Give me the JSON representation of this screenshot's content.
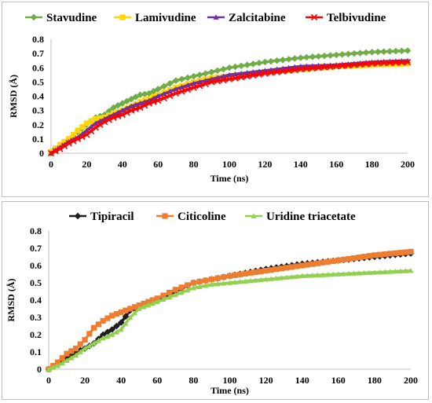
{
  "chart_data": [
    {
      "type": "line",
      "xlabel": "Time (ns)",
      "ylabel": "RMSD (Å)",
      "xlim": [
        0,
        200
      ],
      "ylim": [
        0,
        0.8
      ],
      "xticks": [
        0,
        20,
        40,
        60,
        80,
        100,
        120,
        140,
        160,
        180,
        200
      ],
      "yticks": [
        0,
        0.1,
        0.2,
        0.3,
        0.4,
        0.5,
        0.6,
        0.7,
        0.8
      ],
      "grid": false,
      "legend": "top",
      "series": [
        {
          "name": "Stavudine",
          "color": "#70ad47",
          "marker": "diamond",
          "x": [
            0,
            5,
            10,
            15,
            20,
            25,
            30,
            35,
            40,
            45,
            50,
            55,
            60,
            70,
            80,
            90,
            100,
            120,
            140,
            160,
            180,
            200
          ],
          "values": [
            0.0,
            0.05,
            0.1,
            0.15,
            0.2,
            0.25,
            0.27,
            0.32,
            0.35,
            0.38,
            0.41,
            0.42,
            0.45,
            0.51,
            0.54,
            0.57,
            0.6,
            0.64,
            0.67,
            0.69,
            0.71,
            0.72
          ]
        },
        {
          "name": "Lamivudine",
          "color": "#ffd700",
          "marker": "square",
          "x": [
            0,
            5,
            10,
            15,
            20,
            25,
            30,
            35,
            40,
            45,
            50,
            55,
            60,
            70,
            80,
            90,
            100,
            120,
            140,
            160,
            180,
            200
          ],
          "values": [
            0.01,
            0.06,
            0.1,
            0.16,
            0.21,
            0.24,
            0.25,
            0.28,
            0.3,
            0.33,
            0.36,
            0.38,
            0.41,
            0.46,
            0.5,
            0.53,
            0.54,
            0.57,
            0.59,
            0.61,
            0.62,
            0.63
          ]
        },
        {
          "name": "Zalcitabine",
          "color": "#7030a0",
          "marker": "triangle",
          "x": [
            0,
            5,
            10,
            15,
            20,
            25,
            30,
            35,
            40,
            45,
            50,
            55,
            60,
            70,
            80,
            90,
            100,
            120,
            140,
            160,
            180,
            200
          ],
          "values": [
            0.0,
            0.04,
            0.08,
            0.11,
            0.16,
            0.21,
            0.24,
            0.27,
            0.3,
            0.33,
            0.35,
            0.37,
            0.4,
            0.45,
            0.49,
            0.52,
            0.55,
            0.58,
            0.61,
            0.62,
            0.64,
            0.65
          ]
        },
        {
          "name": "Telbivudine",
          "color": "#ff0000",
          "marker": "x",
          "x": [
            0,
            5,
            10,
            15,
            20,
            25,
            30,
            35,
            40,
            45,
            50,
            55,
            60,
            70,
            80,
            90,
            100,
            120,
            140,
            160,
            180,
            200
          ],
          "values": [
            0.0,
            0.03,
            0.07,
            0.1,
            0.13,
            0.18,
            0.22,
            0.25,
            0.27,
            0.3,
            0.32,
            0.35,
            0.37,
            0.42,
            0.46,
            0.5,
            0.52,
            0.56,
            0.59,
            0.61,
            0.63,
            0.64
          ]
        }
      ]
    },
    {
      "type": "line",
      "xlabel": "Time (ns)",
      "ylabel": "RMSD (Å)",
      "xlim": [
        0,
        200
      ],
      "ylim": [
        0,
        0.8
      ],
      "xticks": [
        0,
        20,
        40,
        60,
        80,
        100,
        120,
        140,
        160,
        180,
        200
      ],
      "yticks": [
        0,
        0.1,
        0.2,
        0.3,
        0.4,
        0.5,
        0.6,
        0.7,
        0.8
      ],
      "grid": false,
      "legend": "top",
      "series": [
        {
          "name": "Tipiracil",
          "color": "#1f1f1f",
          "marker": "diamond",
          "x": [
            0,
            5,
            10,
            15,
            20,
            25,
            30,
            35,
            40,
            45,
            50,
            55,
            60,
            70,
            80,
            90,
            100,
            120,
            140,
            160,
            180,
            200
          ],
          "values": [
            0.0,
            0.03,
            0.06,
            0.1,
            0.12,
            0.15,
            0.2,
            0.23,
            0.27,
            0.34,
            0.36,
            0.38,
            0.4,
            0.45,
            0.5,
            0.52,
            0.54,
            0.58,
            0.61,
            0.63,
            0.65,
            0.67
          ]
        },
        {
          "name": "Citicoline",
          "color": "#ed7d31",
          "marker": "square",
          "x": [
            0,
            5,
            10,
            15,
            20,
            25,
            30,
            35,
            40,
            45,
            50,
            55,
            60,
            70,
            80,
            90,
            100,
            120,
            140,
            160,
            180,
            200
          ],
          "values": [
            0.0,
            0.04,
            0.09,
            0.12,
            0.17,
            0.24,
            0.28,
            0.31,
            0.33,
            0.35,
            0.37,
            0.39,
            0.41,
            0.46,
            0.5,
            0.52,
            0.54,
            0.57,
            0.6,
            0.63,
            0.66,
            0.68
          ]
        },
        {
          "name": "Uridine triacetate",
          "color": "#92d050",
          "marker": "triangle",
          "x": [
            0,
            5,
            10,
            15,
            20,
            25,
            30,
            35,
            40,
            45,
            50,
            55,
            60,
            70,
            80,
            90,
            100,
            120,
            140,
            160,
            180,
            200
          ],
          "values": [
            0.0,
            0.02,
            0.05,
            0.08,
            0.12,
            0.15,
            0.18,
            0.2,
            0.23,
            0.3,
            0.35,
            0.37,
            0.39,
            0.43,
            0.47,
            0.49,
            0.5,
            0.52,
            0.54,
            0.55,
            0.56,
            0.57
          ]
        }
      ]
    }
  ]
}
